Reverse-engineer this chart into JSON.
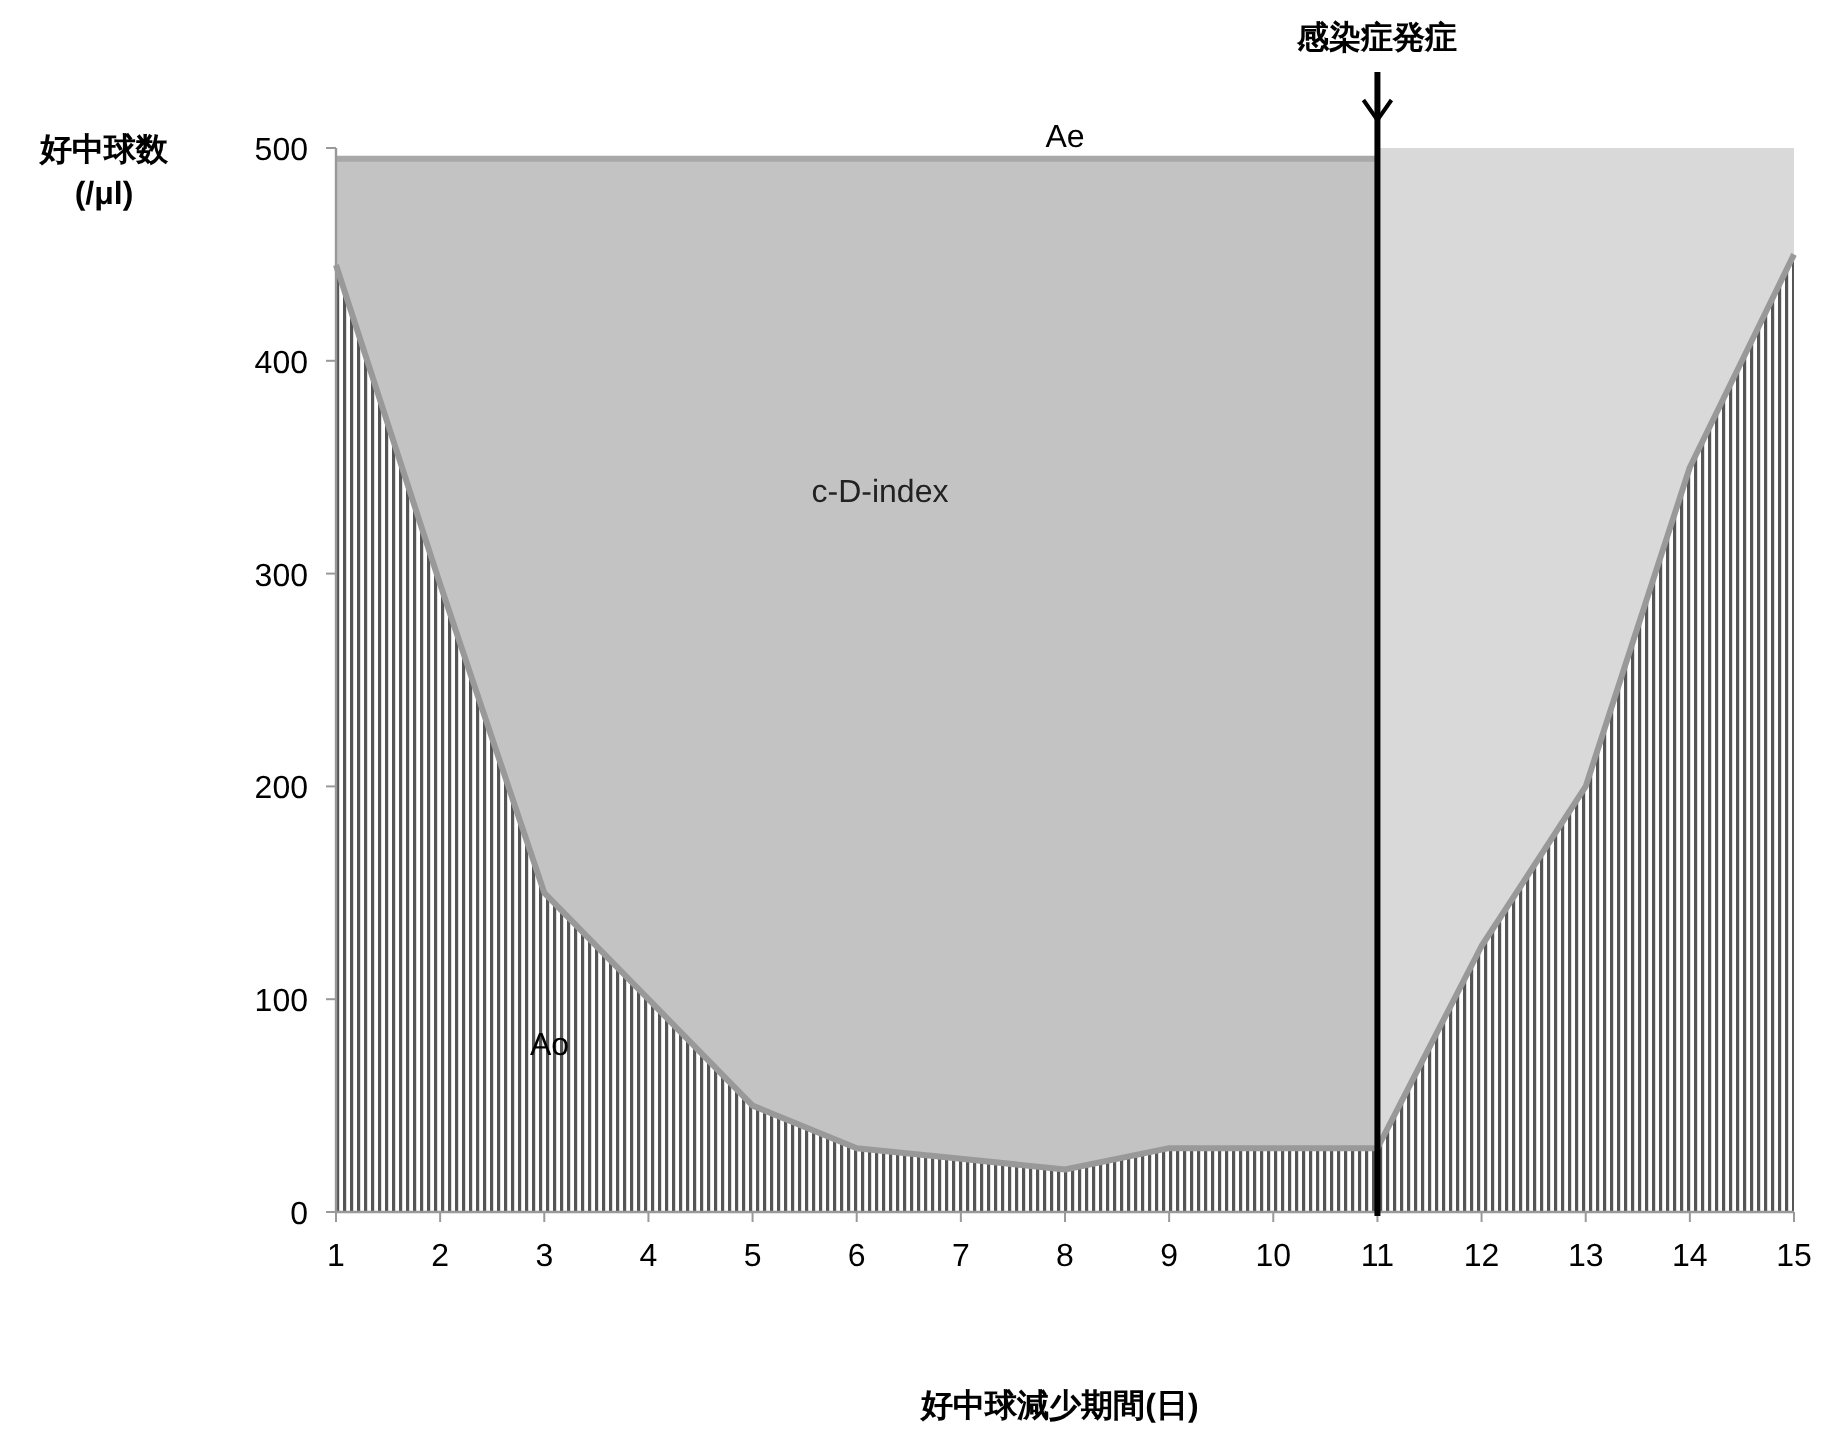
{
  "chart_data": {
    "type": "area",
    "xlabel": "好中球減少期間(日)",
    "ylabel": "好中球数 (/μl)",
    "x": [
      1,
      2,
      3,
      4,
      5,
      6,
      7,
      8,
      9,
      10,
      11,
      12,
      13,
      14,
      15
    ],
    "series": [
      {
        "name": "Ae",
        "color": "#c3c3c3",
        "values": [
          495,
          495,
          495,
          495,
          495,
          495,
          495,
          495,
          495,
          495,
          495,
          null,
          null,
          null,
          null
        ]
      },
      {
        "name": "Ao",
        "color": "#555555",
        "values": [
          445,
          295,
          150,
          100,
          50,
          30,
          25,
          20,
          30,
          30,
          30,
          125,
          200,
          350,
          450
        ]
      }
    ],
    "xlim": [
      1,
      15
    ],
    "ylim": [
      0,
      500
    ],
    "xticks": [
      1,
      2,
      3,
      4,
      5,
      6,
      7,
      8,
      9,
      10,
      11,
      12,
      13,
      14,
      15
    ],
    "yticks": [
      0,
      100,
      200,
      300,
      400,
      500
    ],
    "grid": false,
    "bands": [
      {
        "axis": "x",
        "from": 11,
        "to": 15,
        "color": "#d9d9d9"
      }
    ],
    "ref_lines": [
      {
        "axis": "x",
        "value": 11,
        "label": "感染症発症",
        "color": "#000000"
      }
    ],
    "annotations": [
      "c-D-index"
    ]
  }
}
